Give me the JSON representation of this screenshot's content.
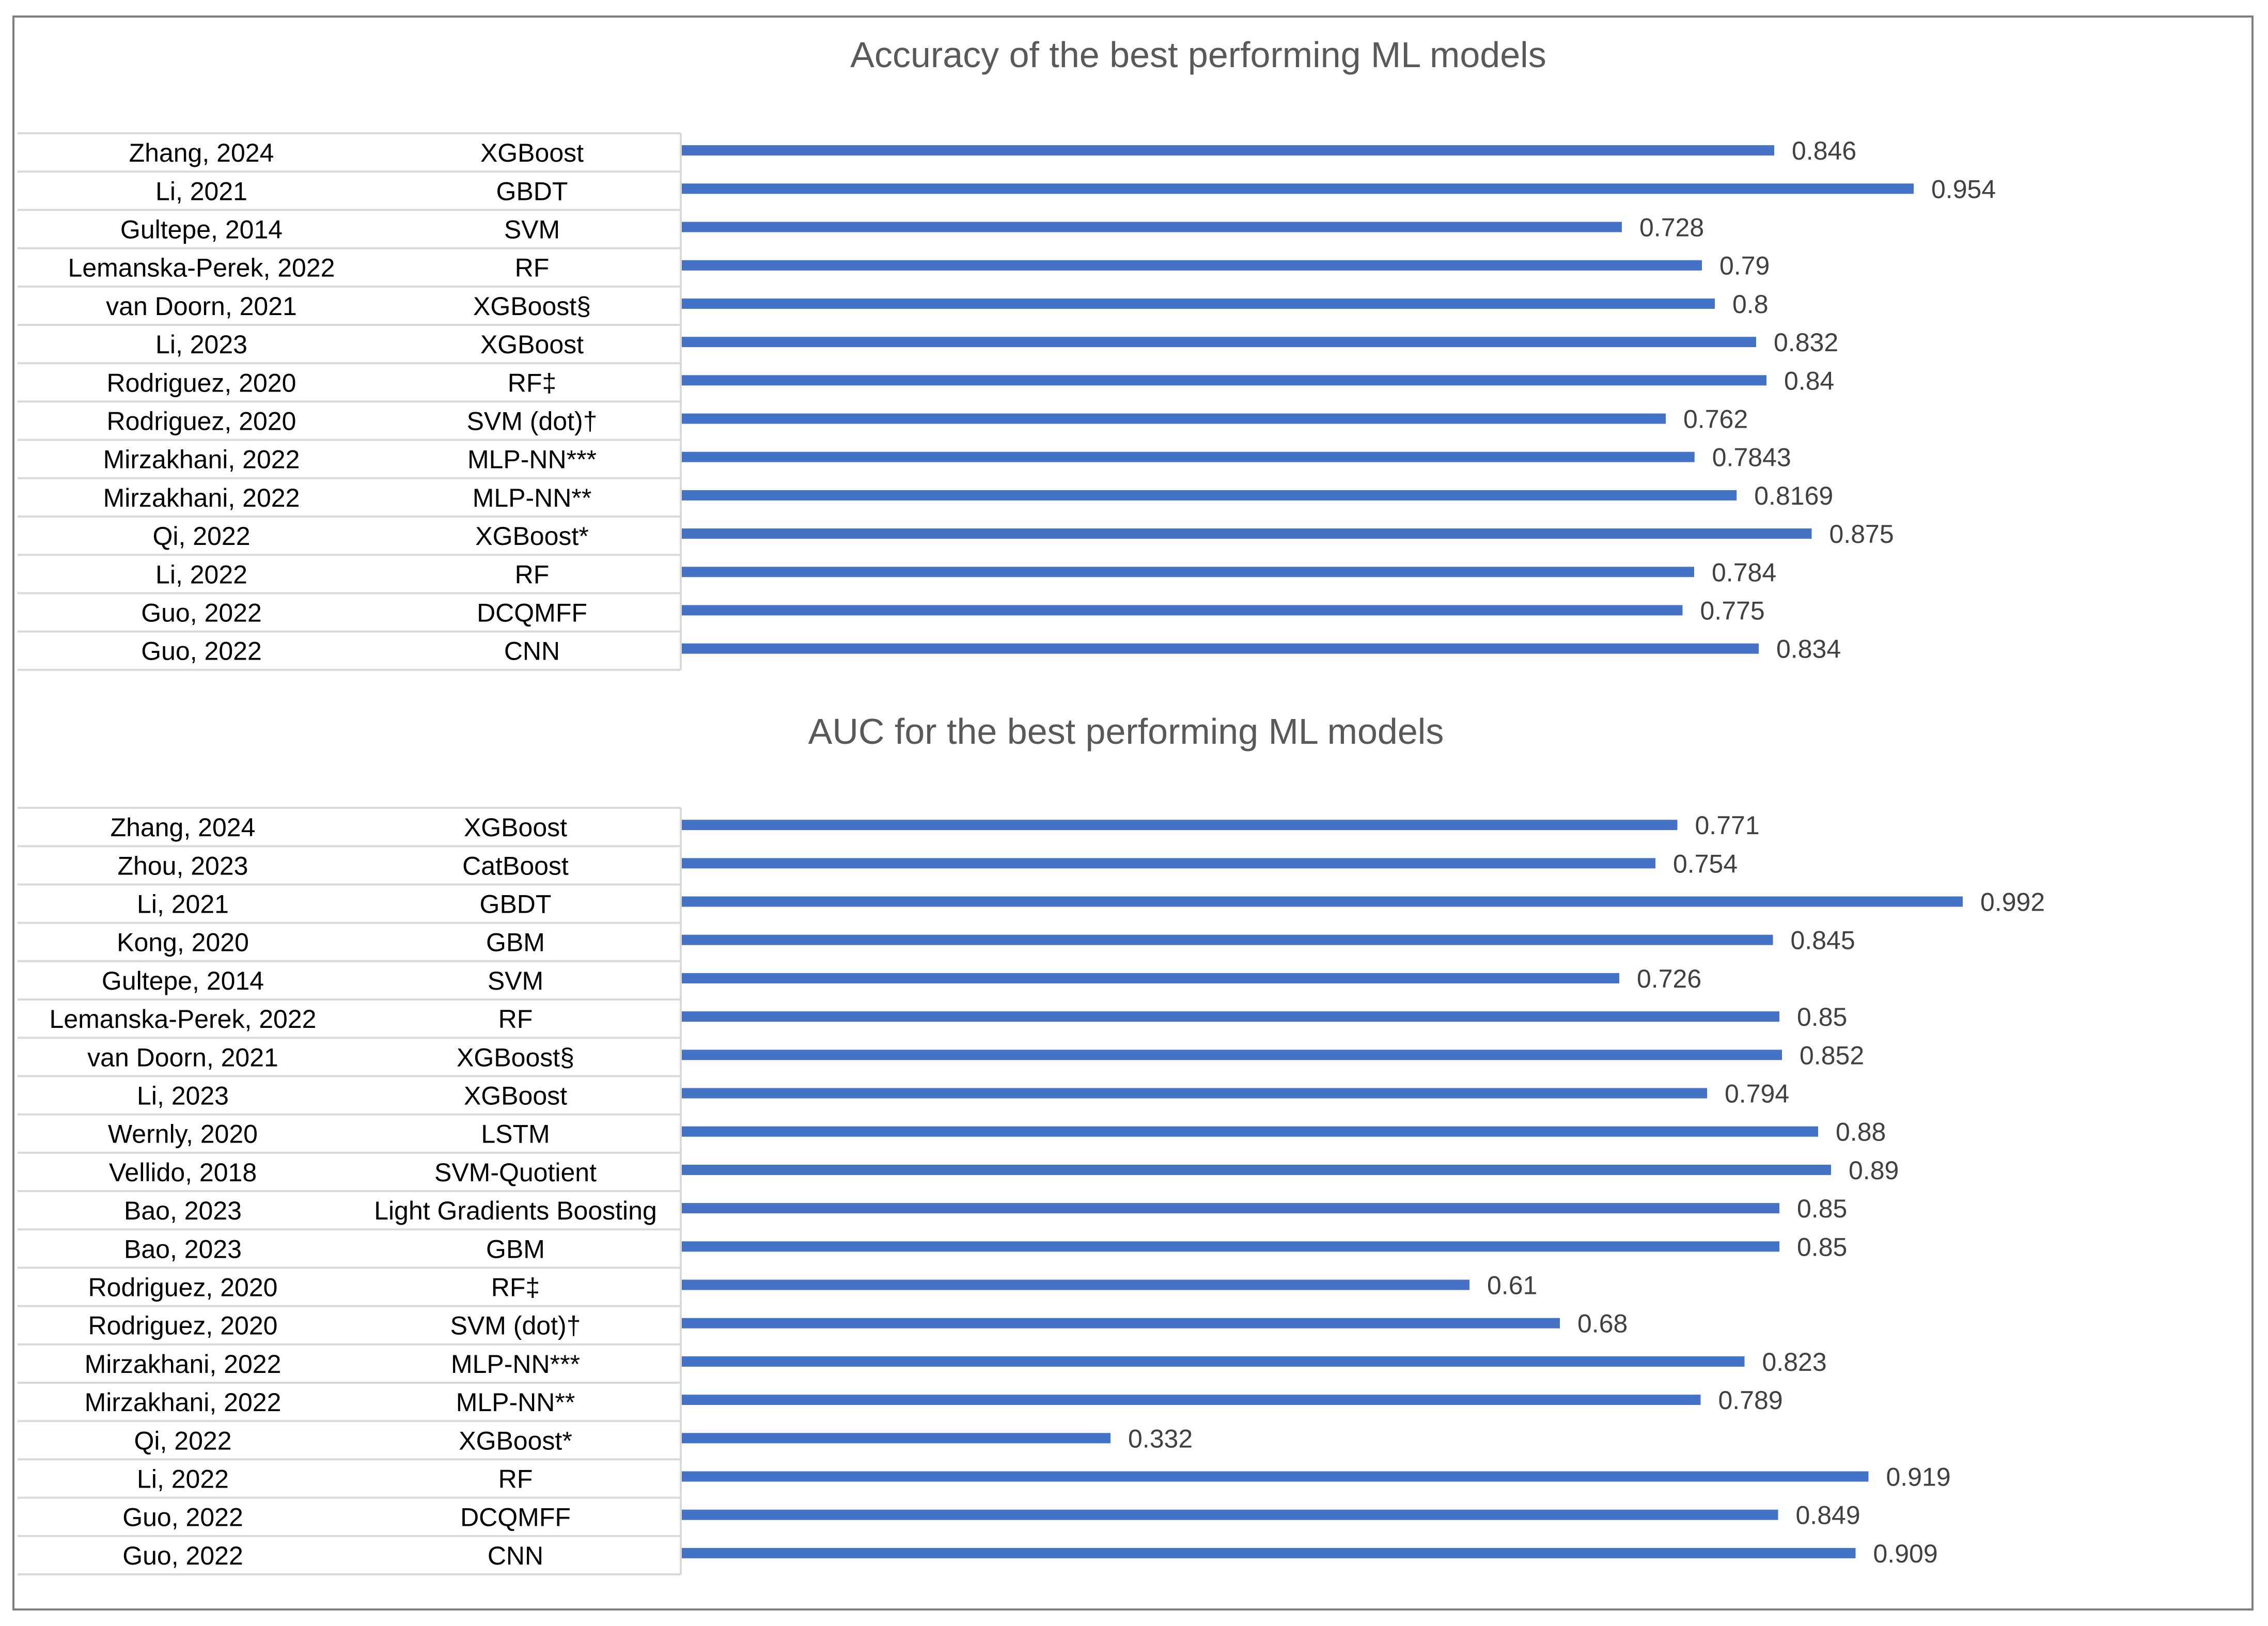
{
  "chart_data": [
    {
      "type": "bar",
      "orientation": "horizontal",
      "title": "Accuracy of the best performing ML models",
      "xlim": [
        0,
        1
      ],
      "grid": false,
      "legend": "none",
      "bar_color": "#4472c4",
      "rows": [
        {
          "study": "Zhang, 2024",
          "model": "XGBoost",
          "value": 0.846,
          "label": "0.846"
        },
        {
          "study": "Li, 2021",
          "model": "GBDT",
          "value": 0.954,
          "label": "0.954"
        },
        {
          "study": "Gultepe, 2014",
          "model": "SVM",
          "value": 0.728,
          "label": "0.728"
        },
        {
          "study": "Lemanska-Perek, 2022",
          "model": "RF",
          "value": 0.79,
          "label": "0.79"
        },
        {
          "study": "van Doorn, 2021",
          "model": "XGBoost§",
          "value": 0.8,
          "label": "0.8"
        },
        {
          "study": "Li, 2023",
          "model": "XGBoost",
          "value": 0.832,
          "label": "0.832"
        },
        {
          "study": "Rodriguez, 2020",
          "model": "RF‡",
          "value": 0.84,
          "label": "0.84"
        },
        {
          "study": "Rodriguez, 2020",
          "model": "SVM (dot)†",
          "value": 0.762,
          "label": "0.762"
        },
        {
          "study": "Mirzakhani, 2022",
          "model": "MLP-NN***",
          "value": 0.7843,
          "label": "0.7843"
        },
        {
          "study": "Mirzakhani, 2022",
          "model": "MLP-NN**",
          "value": 0.8169,
          "label": "0.8169"
        },
        {
          "study": "Qi, 2022",
          "model": "XGBoost*",
          "value": 0.875,
          "label": "0.875"
        },
        {
          "study": "Li, 2022",
          "model": "RF",
          "value": 0.784,
          "label": "0.784"
        },
        {
          "study": "Guo, 2022",
          "model": "DCQMFF",
          "value": 0.775,
          "label": "0.775"
        },
        {
          "study": "Guo, 2022",
          "model": "CNN",
          "value": 0.834,
          "label": "0.834"
        }
      ]
    },
    {
      "type": "bar",
      "orientation": "horizontal",
      "title": "AUC for the best performing ML models",
      "xlim": [
        0,
        1
      ],
      "grid": false,
      "legend": "none",
      "bar_color": "#4472c4",
      "rows": [
        {
          "study": "Zhang, 2024",
          "model": "XGBoost",
          "value": 0.771,
          "label": "0.771"
        },
        {
          "study": "Zhou, 2023",
          "model": "CatBoost",
          "value": 0.754,
          "label": "0.754"
        },
        {
          "study": "Li, 2021",
          "model": "GBDT",
          "value": 0.992,
          "label": "0.992"
        },
        {
          "study": "Kong, 2020",
          "model": "GBM",
          "value": 0.845,
          "label": "0.845"
        },
        {
          "study": "Gultepe, 2014",
          "model": "SVM",
          "value": 0.726,
          "label": "0.726"
        },
        {
          "study": "Lemanska-Perek, 2022",
          "model": "RF",
          "value": 0.85,
          "label": "0.85"
        },
        {
          "study": "van Doorn, 2021",
          "model": "XGBoost§",
          "value": 0.852,
          "label": "0.852"
        },
        {
          "study": "Li, 2023",
          "model": "XGBoost",
          "value": 0.794,
          "label": "0.794"
        },
        {
          "study": "Wernly, 2020",
          "model": "LSTM",
          "value": 0.88,
          "label": "0.88"
        },
        {
          "study": "Vellido, 2018",
          "model": "SVM-Quotient",
          "value": 0.89,
          "label": "0.89"
        },
        {
          "study": "Bao, 2023",
          "model": "Light Gradients Boosting",
          "value": 0.85,
          "label": "0.85"
        },
        {
          "study": "Bao, 2023",
          "model": "GBM",
          "value": 0.85,
          "label": "0.85"
        },
        {
          "study": "Rodriguez, 2020",
          "model": "RF‡",
          "value": 0.61,
          "label": "0.61"
        },
        {
          "study": "Rodriguez, 2020",
          "model": "SVM (dot)†",
          "value": 0.68,
          "label": "0.68"
        },
        {
          "study": "Mirzakhani, 2022",
          "model": "MLP-NN***",
          "value": 0.823,
          "label": "0.823"
        },
        {
          "study": "Mirzakhani, 2022",
          "model": "MLP-NN**",
          "value": 0.789,
          "label": "0.789"
        },
        {
          "study": "Qi, 2022",
          "model": "XGBoost*",
          "value": 0.332,
          "label": "0.332"
        },
        {
          "study": "Li, 2022",
          "model": "RF",
          "value": 0.919,
          "label": "0.919"
        },
        {
          "study": "Guo, 2022",
          "model": "DCQMFF",
          "value": 0.849,
          "label": "0.849"
        },
        {
          "study": "Guo, 2022",
          "model": "CNN",
          "value": 0.909,
          "label": "0.909"
        }
      ]
    }
  ]
}
